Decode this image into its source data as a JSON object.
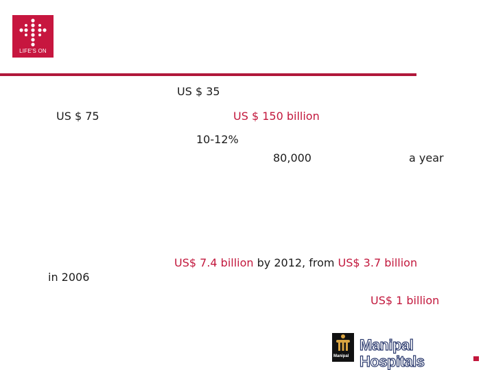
{
  "logo": {
    "tagline": "LIFE'S ON"
  },
  "slide": {
    "items": [
      {
        "text": "US $ 35",
        "color": "#1b1b1b"
      },
      {
        "text": "US $ 75",
        "color": "#1b1b1b"
      },
      {
        "text": "US $ 150 billion",
        "color": "#c2173c"
      },
      {
        "text": "10-12%",
        "color": "#1b1b1b"
      },
      {
        "text": "80,000",
        "color": "#1b1b1b"
      },
      {
        "text": "a year",
        "color": "#1b1b1b"
      },
      {
        "text": "in 2006",
        "color": "#1b1b1b"
      },
      {
        "text_red_1": "US$ 7.4 billion",
        "text_black": " by 2012, from ",
        "text_red_2": "US$ 3.7 billion"
      },
      {
        "text": "US$ 1 billion",
        "color": "#c2173c"
      }
    ]
  },
  "footer_logo": {
    "emblem_label": "Manipal",
    "name": "Manipal Hospitals"
  },
  "colors": {
    "brand": "#c7163f",
    "rule": "#b0173a",
    "accent_text": "#c2173c"
  }
}
